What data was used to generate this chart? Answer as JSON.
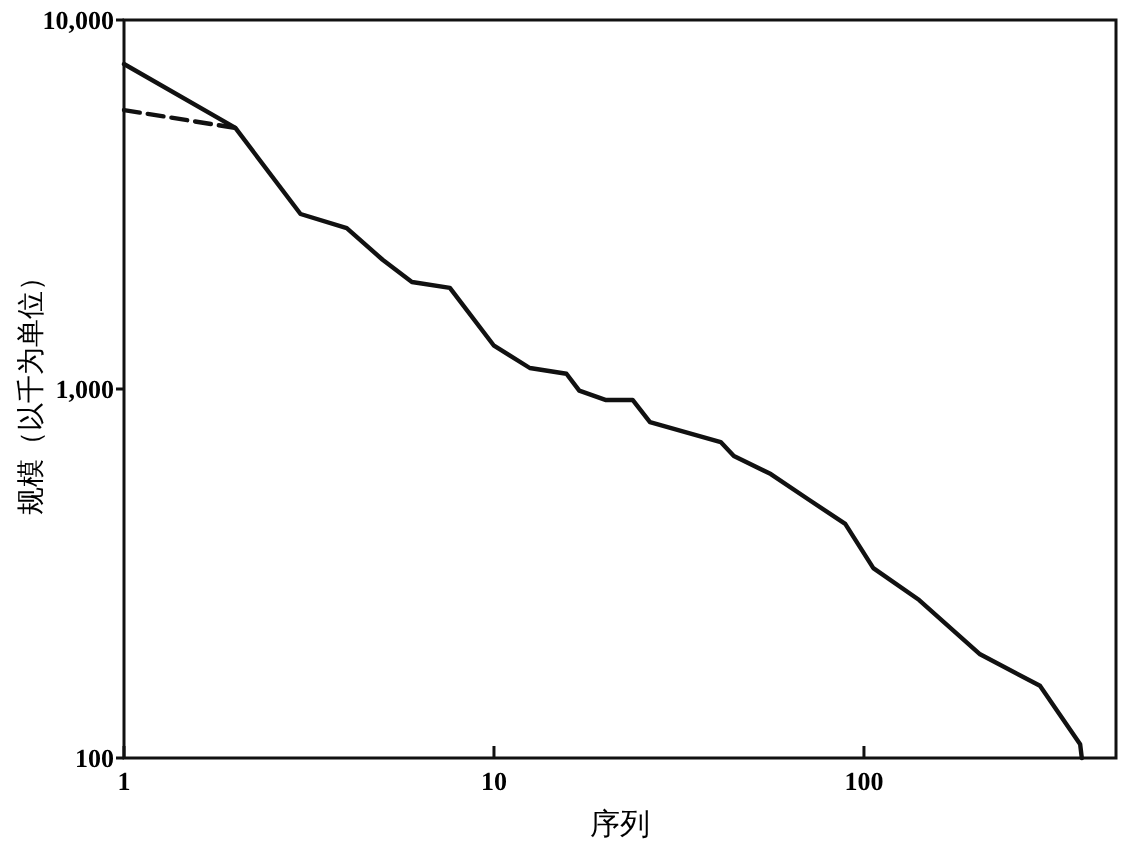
{
  "chart_data": {
    "type": "line",
    "xlabel": "序列",
    "ylabel": "规模（以千为单位）",
    "log": "xy",
    "xlim": [
      1,
      480
    ],
    "ylim": [
      100,
      10000
    ],
    "xticks": [
      1,
      10,
      100
    ],
    "yticks": [
      100,
      {
        "value": 1000,
        "label": "1,000"
      },
      {
        "value": 10000,
        "label": "10,000"
      }
    ],
    "marker": "none",
    "series": [
      {
        "color": "#111111",
        "line_style": "solid",
        "x": [
          1,
          2,
          3,
          4,
          5,
          6,
          7.6,
          10,
          12.5,
          15.7,
          17,
          20,
          23.7,
          26.4,
          41,
          44.5,
          56,
          71,
          89,
          106,
          141,
          206,
          299,
          384,
          388
        ],
        "values": [
          7600,
          5100,
          2980,
          2730,
          2240,
          1950,
          1880,
          1310,
          1140,
          1100,
          990,
          934,
          934,
          813,
          718,
          658,
          588,
          501,
          431,
          327,
          268,
          191,
          157,
          109,
          100
        ]
      },
      {
        "color": "#111111",
        "line_style": "dashed",
        "x": [
          1,
          2
        ],
        "values": [
          5700,
          5100
        ]
      }
    ]
  }
}
